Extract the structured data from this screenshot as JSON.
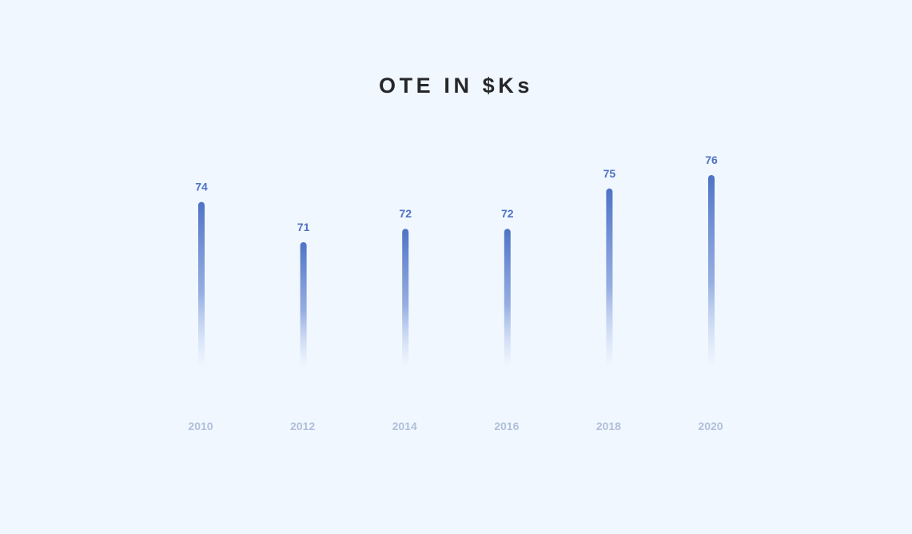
{
  "chart_data": {
    "type": "bar",
    "title": "OTE IN $Ks",
    "categories": [
      "2010",
      "2012",
      "2014",
      "2016",
      "2018",
      "2020"
    ],
    "values": [
      74,
      71,
      72,
      72,
      75,
      76
    ],
    "xlabel": "",
    "ylabel": "",
    "grid": false,
    "legend": "none"
  },
  "colors": {
    "background": "#f0f7fe",
    "bar": "#4e72c6",
    "value_label": "#4e72c6",
    "tick_label": "#b0bfda",
    "title": "#26272b"
  }
}
